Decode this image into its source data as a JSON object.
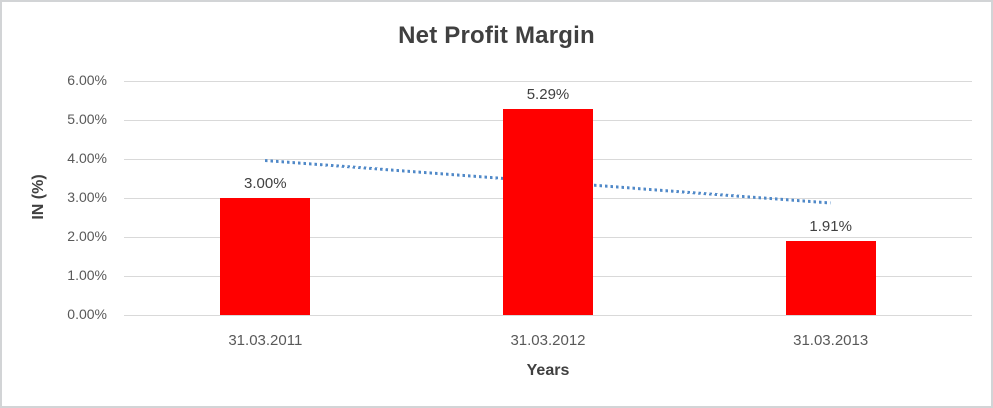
{
  "window": {
    "background_color": "#ffffff",
    "border_color": "#d2d4d6"
  },
  "chart_data": {
    "type": "bar",
    "title": "Net Profit Margin",
    "xlabel": "Years",
    "ylabel": "IN (%)",
    "categories": [
      "31.03.2011",
      "31.03.2012",
      "31.03.2013"
    ],
    "series": [
      {
        "name": "Net Profit Margin",
        "values": [
          3.0,
          5.29,
          1.91
        ]
      }
    ],
    "data_labels": [
      "3.00%",
      "5.29%",
      "1.91%"
    ],
    "y_ticks": [
      6,
      5,
      4,
      3,
      2,
      1,
      0
    ],
    "y_tick_labels": [
      "6.00%",
      "5.00%",
      "4.00%",
      "3.00%",
      "2.00%",
      "1.00%",
      "0.00%"
    ],
    "ylim": [
      0,
      6
    ],
    "grid": true,
    "legend": false,
    "bar_color": "#ff0000",
    "gridline_color": "#d9d9d9",
    "text_color": "#595959",
    "title_color": "#404040",
    "trendline": {
      "type": "linear",
      "style": "dotted",
      "color": "#5089c8",
      "start_value": 3.95,
      "end_value": 2.86
    }
  }
}
